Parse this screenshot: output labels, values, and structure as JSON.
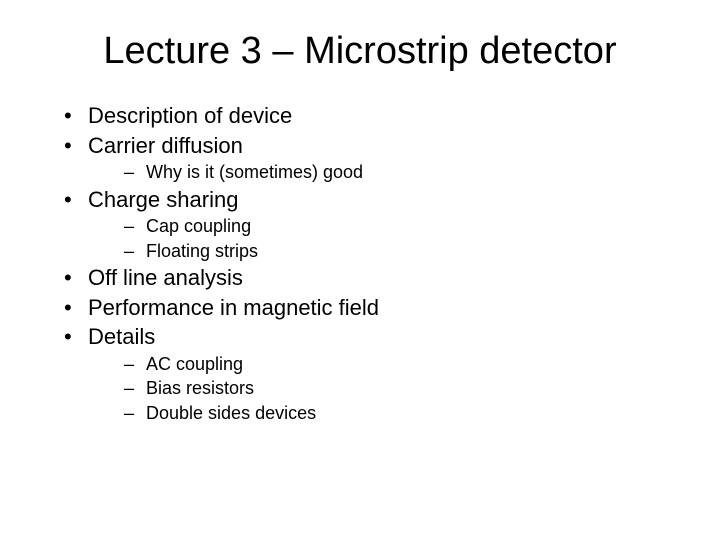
{
  "title": "Lecture 3 – Microstrip detector",
  "items": [
    {
      "text": "Description of device",
      "sub": []
    },
    {
      "text": "Carrier diffusion",
      "sub": [
        {
          "text": "Why is it (sometimes) good"
        }
      ]
    },
    {
      "text": "Charge sharing",
      "sub": [
        {
          "text": "Cap coupling"
        },
        {
          "text": "Floating strips"
        }
      ]
    },
    {
      "text": "Off line analysis",
      "sub": []
    },
    {
      "text": "Performance in magnetic field",
      "sub": []
    },
    {
      "text": "Details",
      "sub": [
        {
          "text": "AC coupling"
        },
        {
          "text": "Bias resistors"
        },
        {
          "text": "Double sides devices"
        }
      ]
    }
  ],
  "style": {
    "background_color": "#ffffff",
    "text_color": "#000000",
    "title_fontsize": 38,
    "level1_fontsize": 22,
    "level2_fontsize": 18,
    "font_family": "Arial"
  }
}
